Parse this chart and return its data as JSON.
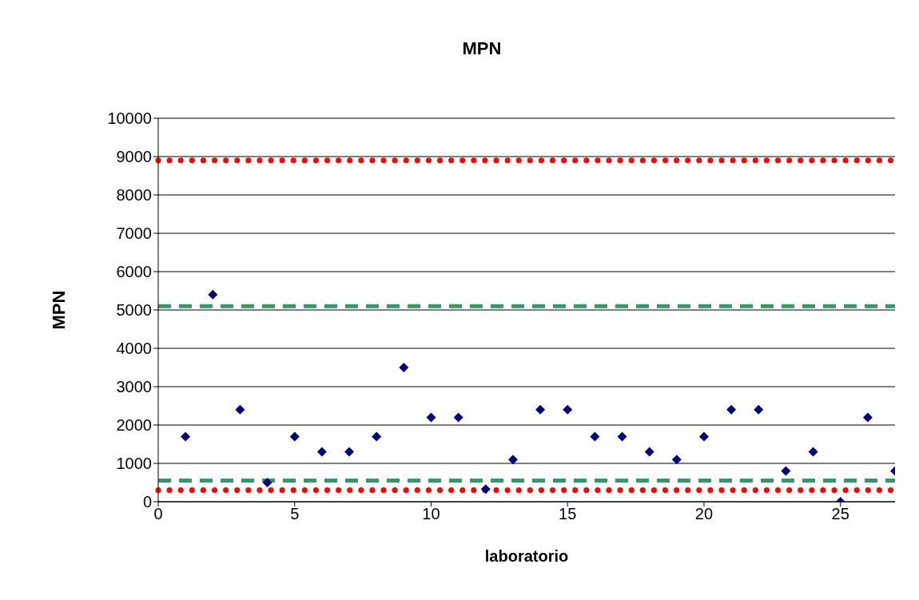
{
  "chart_data": {
    "type": "scatter",
    "title": "MPN",
    "xlabel": "laboratorio",
    "ylabel": "MPN",
    "x": [
      1,
      2,
      3,
      4,
      5,
      6,
      7,
      8,
      9,
      10,
      11,
      12,
      13,
      14,
      15,
      16,
      17,
      18,
      19,
      20,
      21,
      22,
      23,
      24,
      25,
      26,
      27
    ],
    "series": [
      {
        "color": "#000080",
        "values": [
          1700,
          5400,
          2400,
          500,
          1700,
          1300,
          1300,
          1700,
          3500,
          2200,
          2200,
          330,
          1100,
          2400,
          2400,
          1700,
          1700,
          1300,
          1100,
          1700,
          2400,
          2400,
          800,
          1300,
          0,
          2200,
          800
        ]
      }
    ],
    "xlim": [
      0,
      27
    ],
    "xticks": [
      0,
      5,
      10,
      15,
      20,
      25
    ],
    "ylim": [
      0,
      10000
    ],
    "yticks": [
      0,
      1000,
      2000,
      3000,
      4000,
      5000,
      6000,
      7000,
      8000,
      9000,
      10000
    ],
    "ref_lines": [
      {
        "axis": "y",
        "value": 8900,
        "color": "#ff0000",
        "line_style": "dotted"
      },
      {
        "axis": "y",
        "value": 5100,
        "color": "#339966",
        "line_style": "dashed"
      },
      {
        "axis": "y",
        "value": 550,
        "color": "#339966",
        "line_style": "dashed"
      },
      {
        "axis": "y",
        "value": 300,
        "color": "#ff0000",
        "line_style": "dotted"
      }
    ],
    "grid": "y",
    "marker": "diamond"
  }
}
